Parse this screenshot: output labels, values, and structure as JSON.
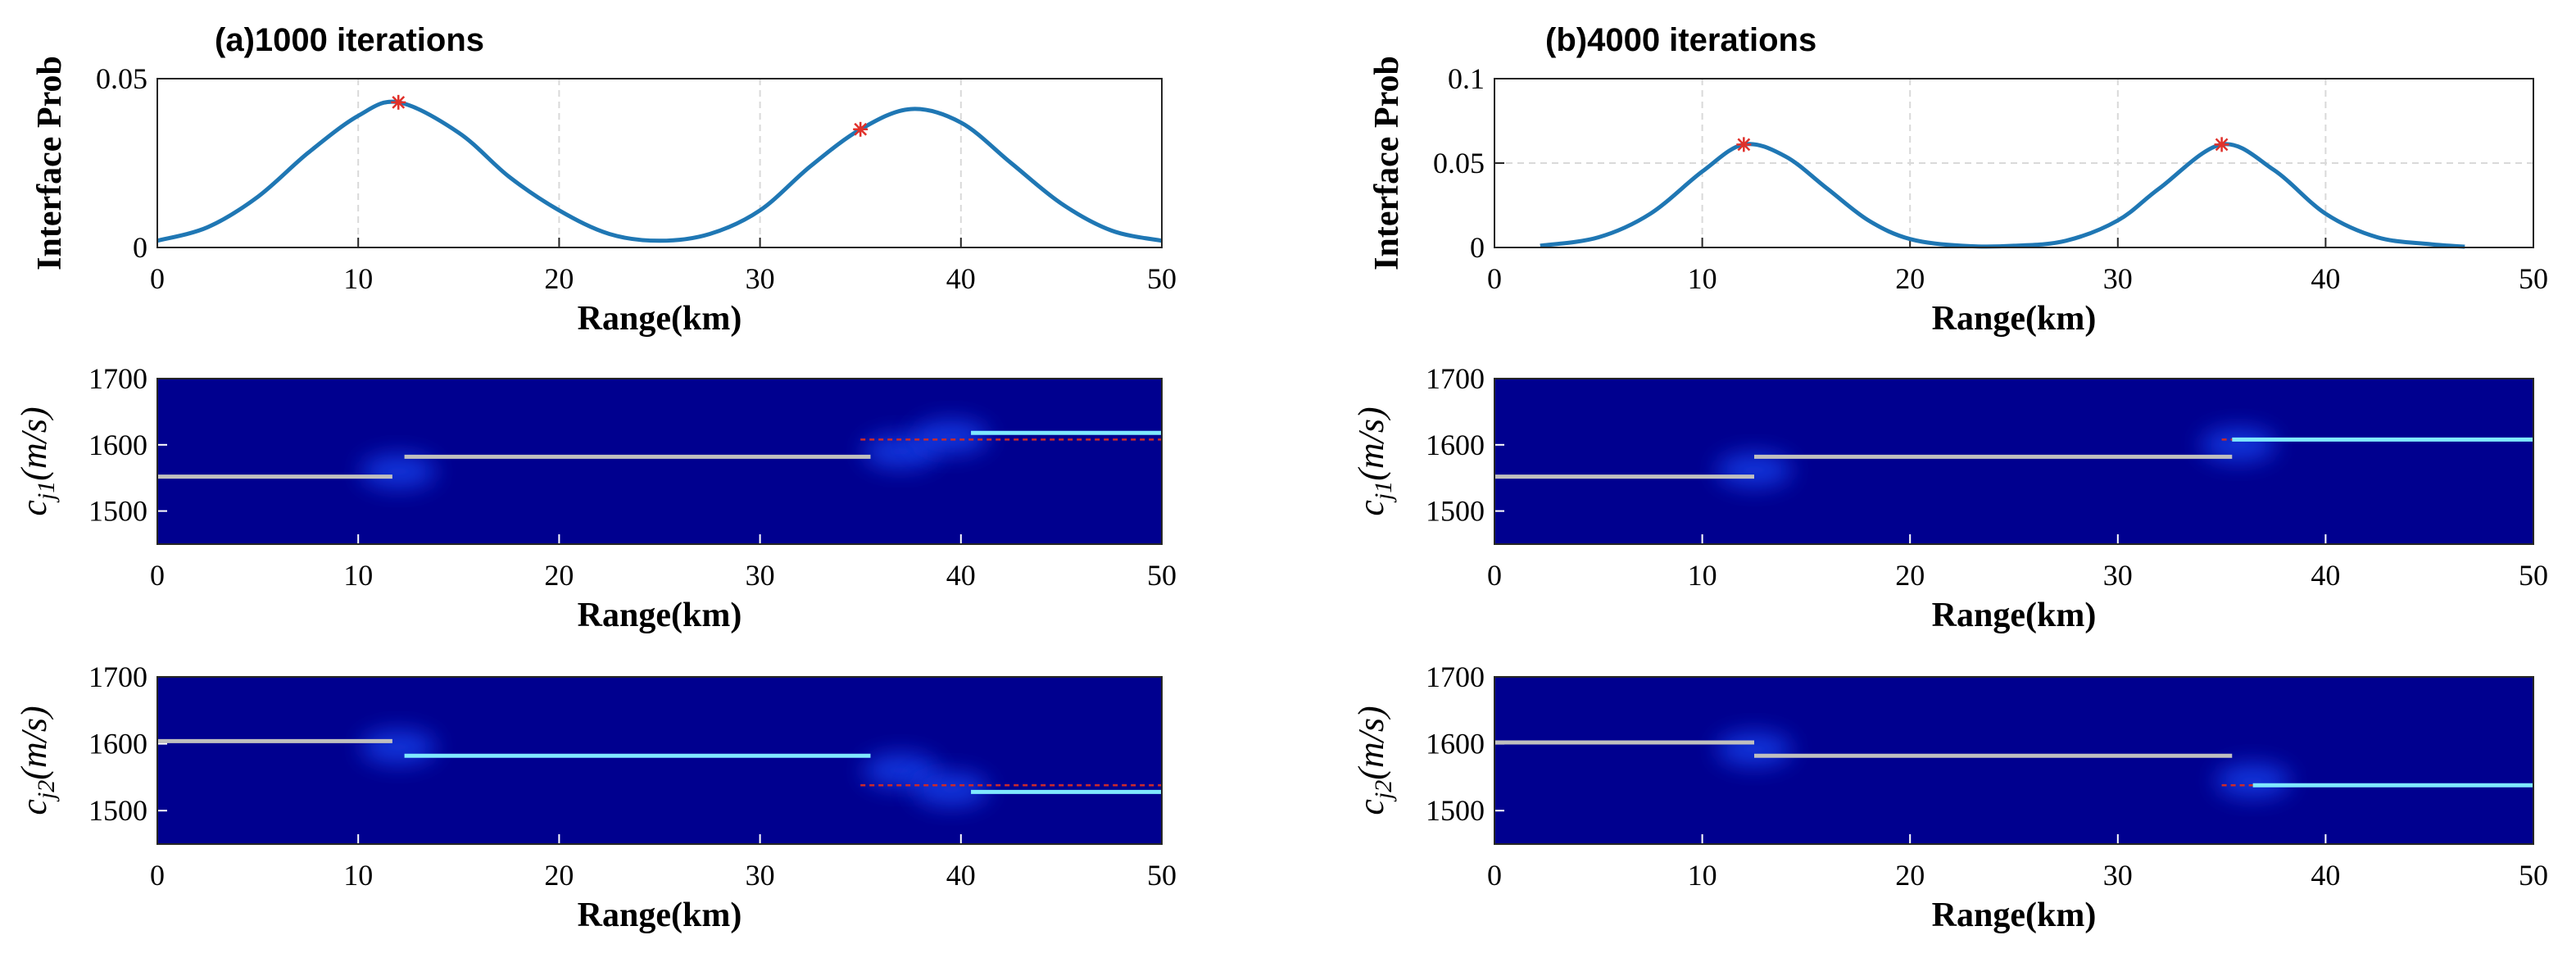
{
  "figure": {
    "panels": [
      {
        "title": "(a)1000 iterations"
      },
      {
        "title": "(b)4000 iterations"
      }
    ]
  },
  "colors": {
    "curve": "#1f77b4",
    "marker": "#e0302a",
    "heatmap_bg": "#00008f",
    "grid": "#d9d9d9",
    "true_line": "#cc2a2a",
    "glow": "#44d9ff",
    "est_line": "#bfbfbf"
  },
  "chart_data": [
    {
      "id": "a-prob",
      "panel": 0,
      "type": "line",
      "ylabel": "Interface Prob",
      "xlabel": "Range(km)",
      "xlim": [
        0,
        50
      ],
      "ylim": [
        0,
        0.05
      ],
      "xticks": [
        "0",
        "10",
        "20",
        "30",
        "40",
        "50"
      ],
      "yticks": [
        "0",
        "0.05"
      ],
      "x": [
        0,
        2.5,
        5,
        7.5,
        10,
        12,
        15,
        17.5,
        20,
        22.5,
        25,
        27.5,
        30,
        32.5,
        35,
        37.5,
        40,
        42.5,
        45,
        47.5,
        50
      ],
      "series": [
        {
          "name": "interface probability",
          "values": [
            0.002,
            0.006,
            0.015,
            0.028,
            0.039,
            0.043,
            0.034,
            0.021,
            0.011,
            0.004,
            0.002,
            0.004,
            0.011,
            0.024,
            0.035,
            0.041,
            0.037,
            0.025,
            0.013,
            0.005,
            0.002
          ]
        }
      ],
      "markers": [
        {
          "x": 12,
          "y": 0.043
        },
        {
          "x": 35,
          "y": 0.035
        }
      ]
    },
    {
      "id": "a-cj1",
      "panel": 0,
      "type": "heatmap",
      "ylabel": "c_{j1}(m/s)",
      "xlabel": "Range(km)",
      "xlim": [
        0,
        50
      ],
      "ylim": [
        1450,
        1700
      ],
      "xticks": [
        "0",
        "10",
        "20",
        "30",
        "40",
        "50"
      ],
      "yticks": [
        "1500",
        "1600",
        "1700"
      ],
      "true_segments": [
        {
          "x0": 35,
          "x1": 50,
          "y": 1608
        }
      ],
      "estimated_segments": [
        {
          "x0": 0,
          "x1": 11.7,
          "y": 1552,
          "tone": "gray"
        },
        {
          "x0": 12.3,
          "x1": 35.5,
          "y": 1582,
          "tone": "gray"
        },
        {
          "x0": 40.5,
          "x1": 50,
          "y": 1618,
          "tone": "cyan"
        }
      ],
      "blobs": [
        {
          "x": 12,
          "y": 1560
        },
        {
          "x": 37,
          "y": 1590
        },
        {
          "x": 39.5,
          "y": 1612
        }
      ]
    },
    {
      "id": "a-cj2",
      "panel": 0,
      "type": "heatmap",
      "ylabel": "c_{j2}(m/s)",
      "xlabel": "Range(km)",
      "xlim": [
        0,
        50
      ],
      "ylim": [
        1450,
        1700
      ],
      "xticks": [
        "0",
        "10",
        "20",
        "30",
        "40",
        "50"
      ],
      "yticks": [
        "1500",
        "1600",
        "1700"
      ],
      "true_segments": [
        {
          "x0": 35,
          "x1": 50,
          "y": 1538
        }
      ],
      "estimated_segments": [
        {
          "x0": 0,
          "x1": 11.7,
          "y": 1604,
          "tone": "gray"
        },
        {
          "x0": 12.3,
          "x1": 35.5,
          "y": 1582,
          "tone": "cyan"
        },
        {
          "x0": 40.5,
          "x1": 50,
          "y": 1528,
          "tone": "cyan"
        }
      ],
      "blobs": [
        {
          "x": 12,
          "y": 1595
        },
        {
          "x": 37,
          "y": 1560
        },
        {
          "x": 39.5,
          "y": 1532
        }
      ]
    },
    {
      "id": "b-prob",
      "panel": 1,
      "type": "line",
      "ylabel": "Interface Prob",
      "xlabel": "Range(km)",
      "xlim": [
        0,
        50
      ],
      "ylim": [
        0,
        0.1
      ],
      "xticks": [
        "0",
        "10",
        "20",
        "30",
        "40",
        "50"
      ],
      "yticks": [
        "0",
        "0.05",
        "0.1"
      ],
      "x": [
        2.2,
        5,
        7.5,
        10,
        12,
        14,
        16,
        18,
        20,
        22.5,
        25,
        27.5,
        30,
        32,
        35,
        37.5,
        40,
        42.5,
        45,
        46.7
      ],
      "series": [
        {
          "name": "interface probability",
          "values": [
            0.001,
            0.006,
            0.02,
            0.045,
            0.061,
            0.054,
            0.035,
            0.016,
            0.005,
            0.001,
            0.001,
            0.004,
            0.016,
            0.035,
            0.061,
            0.046,
            0.02,
            0.006,
            0.002,
            0.0005
          ]
        }
      ],
      "markers": [
        {
          "x": 12,
          "y": 0.061
        },
        {
          "x": 35,
          "y": 0.061
        }
      ]
    },
    {
      "id": "b-cj1",
      "panel": 1,
      "type": "heatmap",
      "ylabel": "c_{j1}(m/s)",
      "xlabel": "Range(km)",
      "xlim": [
        0,
        50
      ],
      "ylim": [
        1450,
        1700
      ],
      "xticks": [
        "0",
        "10",
        "20",
        "30",
        "40",
        "50"
      ],
      "yticks": [
        "1500",
        "1600",
        "1700"
      ],
      "true_segments": [
        {
          "x0": 35,
          "x1": 50,
          "y": 1608
        }
      ],
      "estimated_segments": [
        {
          "x0": 0,
          "x1": 12.5,
          "y": 1552,
          "tone": "gray"
        },
        {
          "x0": 12.5,
          "x1": 35.5,
          "y": 1582,
          "tone": "gray"
        },
        {
          "x0": 35.5,
          "x1": 50,
          "y": 1608,
          "tone": "cyan"
        }
      ],
      "blobs": [
        {
          "x": 12.5,
          "y": 1562
        },
        {
          "x": 35.8,
          "y": 1600
        }
      ]
    },
    {
      "id": "b-cj2",
      "panel": 1,
      "type": "heatmap",
      "ylabel": "c_{j2}(m/s)",
      "xlabel": "Range(km)",
      "xlim": [
        0,
        50
      ],
      "ylim": [
        1450,
        1700
      ],
      "xticks": [
        "0",
        "10",
        "20",
        "30",
        "40",
        "50"
      ],
      "yticks": [
        "1500",
        "1600",
        "1700"
      ],
      "true_segments": [
        {
          "x0": 35,
          "x1": 50,
          "y": 1538
        }
      ],
      "estimated_segments": [
        {
          "x0": 0,
          "x1": 12.5,
          "y": 1602,
          "tone": "gray"
        },
        {
          "x0": 12.5,
          "x1": 35.5,
          "y": 1582,
          "tone": "gray"
        },
        {
          "x0": 36.5,
          "x1": 50,
          "y": 1538,
          "tone": "cyan"
        }
      ],
      "blobs": [
        {
          "x": 12.5,
          "y": 1592
        },
        {
          "x": 36.5,
          "y": 1545
        }
      ]
    }
  ]
}
